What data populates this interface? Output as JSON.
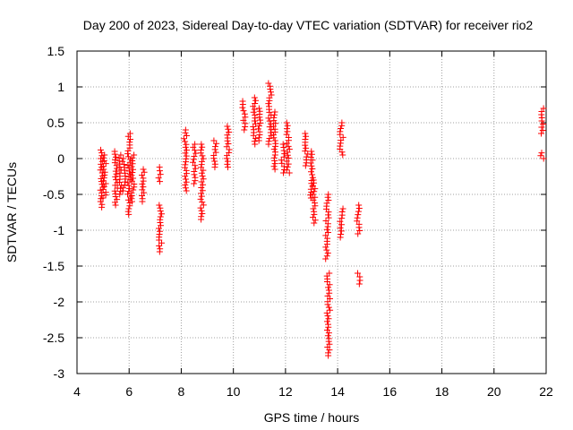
{
  "chart_data": {
    "type": "scatter",
    "title": "Day 200 of 2023, Sidereal Day-to-day VTEC variation (SDTVAR) for receiver rio2",
    "xlabel": "GPS time / hours",
    "ylabel": "SDTVAR / TECUs",
    "xlim": [
      4,
      22
    ],
    "ylim": [
      -3,
      1.5
    ],
    "xticks": [
      4,
      6,
      8,
      10,
      12,
      14,
      16,
      18,
      20,
      22
    ],
    "yticks": [
      -3,
      -2.5,
      -2,
      -1.5,
      -1,
      -0.5,
      0,
      0.5,
      1,
      1.5
    ],
    "grid": true,
    "marker": "+",
    "marker_color": "#ff0000",
    "clusters": [
      {
        "x": 4.95,
        "y_min": -0.68,
        "y_max": 0.12
      },
      {
        "x": 5.05,
        "y_min": -0.55,
        "y_max": 0.05
      },
      {
        "x": 5.5,
        "y_min": -0.65,
        "y_max": 0.1
      },
      {
        "x": 5.65,
        "y_min": -0.5,
        "y_max": 0.05
      },
      {
        "x": 5.8,
        "y_min": -0.45,
        "y_max": 0.0
      },
      {
        "x": 6.0,
        "y_min": -0.78,
        "y_max": 0.35
      },
      {
        "x": 6.15,
        "y_min": -0.6,
        "y_max": 0.05
      },
      {
        "x": 6.55,
        "y_min": -0.6,
        "y_max": -0.15
      },
      {
        "x": 7.15,
        "y_min": -0.32,
        "y_max": -0.12
      },
      {
        "x": 7.2,
        "y_min": -1.3,
        "y_max": -0.65
      },
      {
        "x": 8.15,
        "y_min": -0.45,
        "y_max": 0.4
      },
      {
        "x": 8.5,
        "y_min": -0.35,
        "y_max": 0.2
      },
      {
        "x": 8.8,
        "y_min": -0.85,
        "y_max": 0.2
      },
      {
        "x": 9.3,
        "y_min": -0.12,
        "y_max": 0.25
      },
      {
        "x": 9.8,
        "y_min": -0.12,
        "y_max": 0.45
      },
      {
        "x": 10.4,
        "y_min": 0.4,
        "y_max": 0.8
      },
      {
        "x": 10.8,
        "y_min": 0.2,
        "y_max": 0.85
      },
      {
        "x": 11.0,
        "y_min": 0.25,
        "y_max": 0.7
      },
      {
        "x": 11.4,
        "y_min": 0.2,
        "y_max": 1.05
      },
      {
        "x": 11.6,
        "y_min": -0.15,
        "y_max": 0.65
      },
      {
        "x": 11.9,
        "y_min": -0.2,
        "y_max": 0.2
      },
      {
        "x": 12.1,
        "y_min": -0.2,
        "y_max": 0.5
      },
      {
        "x": 12.8,
        "y_min": -0.1,
        "y_max": 0.35
      },
      {
        "x": 13.0,
        "y_min": -0.55,
        "y_max": 0.1
      },
      {
        "x": 13.1,
        "y_min": -0.9,
        "y_max": -0.3
      },
      {
        "x": 13.6,
        "y_min": -1.4,
        "y_max": -0.5
      },
      {
        "x": 13.65,
        "y_min": -2.75,
        "y_max": -1.6
      },
      {
        "x": 14.15,
        "y_min": 0.05,
        "y_max": 0.5
      },
      {
        "x": 14.15,
        "y_min": -1.1,
        "y_max": -0.7
      },
      {
        "x": 14.8,
        "y_min": -1.05,
        "y_max": -0.65
      },
      {
        "x": 14.8,
        "y_min": -1.75,
        "y_max": -1.6
      },
      {
        "x": 21.85,
        "y_min": 0.35,
        "y_max": 0.7
      },
      {
        "x": 21.85,
        "y_min": 0.0,
        "y_max": 0.08
      }
    ]
  }
}
